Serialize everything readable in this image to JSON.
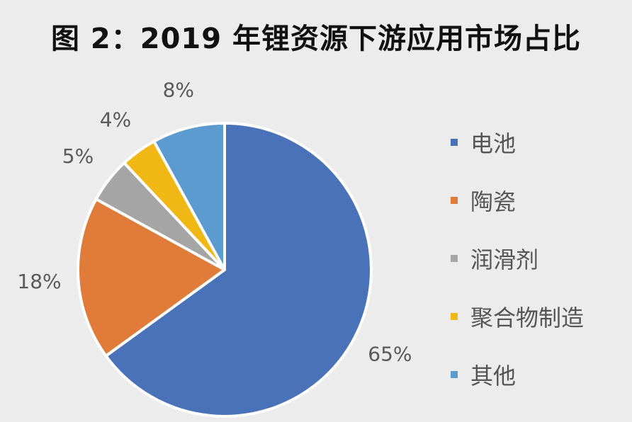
{
  "title": "图 2：2019 年锂资源下游应用市场占比",
  "chart_data": {
    "type": "pie",
    "title": "图 2：2019 年锂资源下游应用市场占比",
    "categories": [
      "电池",
      "陶瓷",
      "润滑剂",
      "聚合物制造",
      "其他"
    ],
    "values": [
      65,
      18,
      5,
      4,
      8
    ],
    "data_labels": [
      "65%",
      "18%",
      "5%",
      "4%",
      "8%"
    ],
    "colors": [
      "#4a72b8",
      "#e07b39",
      "#a5a5a5",
      "#f0b715",
      "#5b9bd0"
    ],
    "legend_position": "right"
  },
  "legend": {
    "items": [
      {
        "label": "电池",
        "color": "#4a72b8"
      },
      {
        "label": "陶瓷",
        "color": "#e07b39"
      },
      {
        "label": "润滑剂",
        "color": "#a5a5a5"
      },
      {
        "label": "聚合物制造",
        "color": "#f0b715"
      },
      {
        "label": "其他",
        "color": "#5b9bd0"
      }
    ]
  }
}
